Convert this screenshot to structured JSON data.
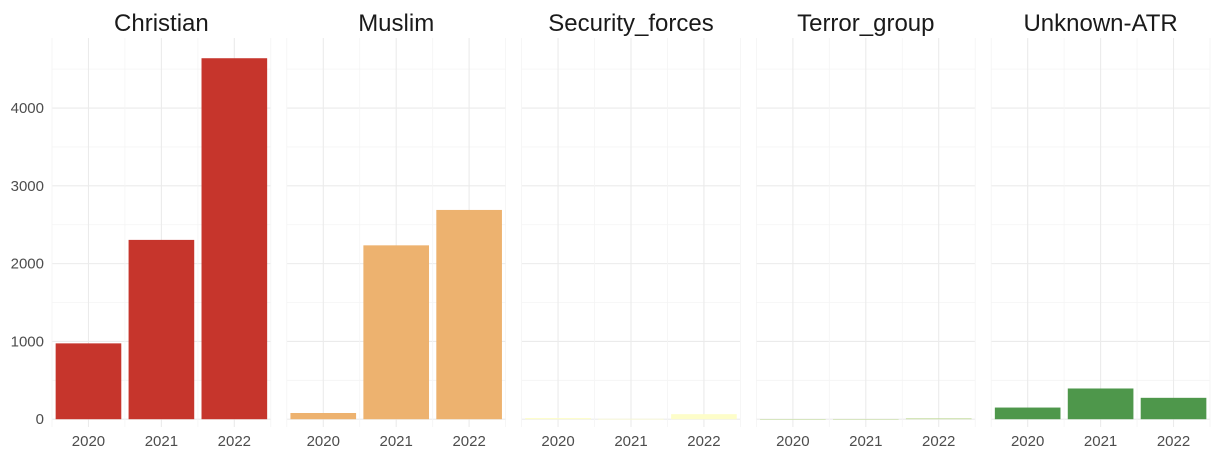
{
  "chart_data": {
    "type": "bar",
    "categories": [
      "2020",
      "2021",
      "2022"
    ],
    "facets": [
      {
        "name": "Christian",
        "color": "#c6352c",
        "values": [
          975,
          2305,
          4640
        ]
      },
      {
        "name": "Muslim",
        "color": "#edb26f",
        "values": [
          80,
          2235,
          2690
        ]
      },
      {
        "name": "Security_forces",
        "color": "#fdfdc9",
        "values": [
          15,
          5,
          65
        ]
      },
      {
        "name": "Terror_group",
        "color": "#c4dd9e",
        "values": [
          2,
          3,
          12
        ]
      },
      {
        "name": "Unknown-ATR",
        "color": "#4e974b",
        "values": [
          150,
          395,
          275
        ]
      }
    ],
    "yticks": [
      0,
      1000,
      2000,
      3000,
      4000
    ],
    "ylim": [
      -100,
      4900
    ],
    "title": "",
    "xlabel": "",
    "ylabel": "",
    "grid": true,
    "legend": "none"
  }
}
